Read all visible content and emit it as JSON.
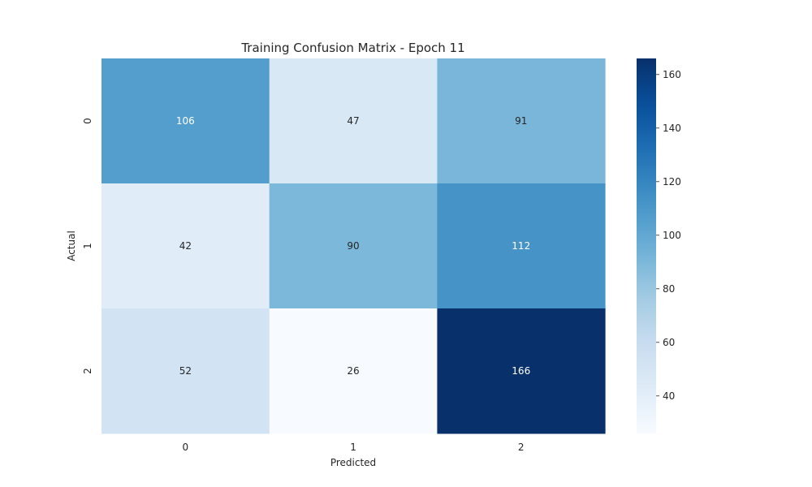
{
  "chart_data": {
    "type": "heatmap",
    "title": "Training Confusion Matrix - Epoch 11",
    "xlabel": "Predicted",
    "ylabel": "Actual",
    "x_categories": [
      "0",
      "1",
      "2"
    ],
    "y_categories": [
      "0",
      "1",
      "2"
    ],
    "values": [
      [
        106,
        47,
        91
      ],
      [
        42,
        90,
        112
      ],
      [
        52,
        26,
        166
      ]
    ],
    "colorbar": {
      "range": [
        26,
        166
      ],
      "ticks": [
        40,
        60,
        80,
        100,
        120,
        140,
        160
      ],
      "colormap": "Blues"
    },
    "grid": false
  }
}
